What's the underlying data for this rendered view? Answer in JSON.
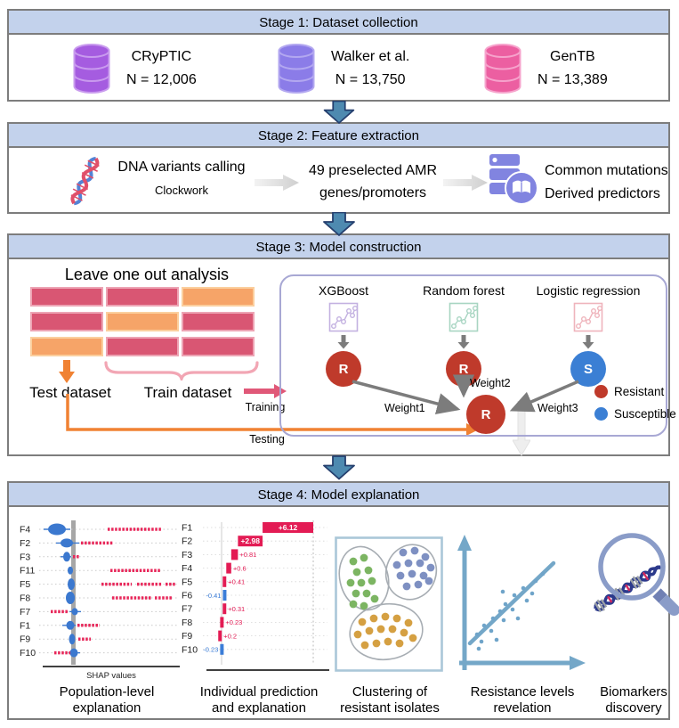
{
  "figure": {
    "stage1": {
      "title": "Stage 1: Dataset collection",
      "datasets": [
        {
          "name": "CRyPTIC",
          "count": "N = 12,006",
          "color": "#a55ce0",
          "band": "#c99bee"
        },
        {
          "name": "Walker et al.",
          "count": "N = 13,750",
          "color": "#8b7ce8",
          "band": "#b3a8f0"
        },
        {
          "name": "GenTB",
          "count": "N = 13,389",
          "color": "#ec5fa1",
          "band": "#f6a3cc"
        }
      ]
    },
    "stage2": {
      "title": "Stage 2: Feature extraction",
      "variant_calling": "DNA variants calling",
      "variant_tool": "Clockwork",
      "genes_line1": "49 preselected AMR",
      "genes_line2": "genes/promoters",
      "outputs_line1": "Common mutations",
      "outputs_line2": "Derived predictors"
    },
    "stage3": {
      "title": "Stage 3: Model construction",
      "loo_title": "Leave one out analysis",
      "bar_rows": [
        [
          "rose",
          "rose",
          "orange"
        ],
        [
          "rose",
          "orange",
          "rose"
        ],
        [
          "orange",
          "rose",
          "rose"
        ]
      ],
      "test_label": "Test dataset",
      "train_label": "Train dataset",
      "training_label": "Training",
      "testing_label": "Testing",
      "models": [
        {
          "name": "XGBoost",
          "accent": "#c3b1e1",
          "node": "R",
          "node_color": "#bf3a2b"
        },
        {
          "name": "Random forest",
          "accent": "#a8d5c2",
          "node": "R",
          "node_color": "#bf3a2b"
        },
        {
          "name": "Logistic regression",
          "accent": "#efb4bc",
          "node": "S",
          "node_color": "#3b7fd4"
        }
      ],
      "weights": [
        "Weight1",
        "Weight2",
        "Weight3"
      ],
      "ensemble_node": {
        "label": "R",
        "color": "#bf3a2b"
      },
      "legend": [
        {
          "label": "Resistant",
          "color": "#bf3a2b"
        },
        {
          "label": "Susceptible",
          "color": "#3b7fd4"
        }
      ]
    },
    "stage4": {
      "title": "Stage 4: Model explanation",
      "beeswarm": {
        "caption_line1": "Population-level",
        "caption_line2": "explanation",
        "xlabel": "SHAP values",
        "red": "#e8275a",
        "blue": "#3b78cf",
        "features": [
          {
            "name": "F4",
            "blue": [
              44,
              10,
              6.5
            ],
            "whisker": [
              29,
              59
            ],
            "red": [
              [
                101,
                162
              ]
            ]
          },
          {
            "name": "F2",
            "blue": [
              55,
              7,
              5
            ],
            "whisker": [
              43,
              69
            ],
            "red": [
              [
                71,
                107
              ]
            ]
          },
          {
            "name": "F3",
            "blue": [
              55,
              4,
              5.5
            ],
            "whisker": [
              48,
              60
            ],
            "red": [
              [
                62,
                70
              ]
            ]
          },
          {
            "name": "F11",
            "blue": [
              59,
              3,
              4.5
            ],
            "whisker": null,
            "red": [
              [
                104,
                160
              ]
            ]
          },
          {
            "name": "F5",
            "blue": [
              60,
              4,
              6.5
            ],
            "whisker": null,
            "red": [
              [
                94,
                128
              ],
              [
                134,
                162
              ],
              [
                166,
                177
              ]
            ]
          },
          {
            "name": "F8",
            "blue": [
              59,
              5,
              7
            ],
            "whisker": null,
            "red": [
              [
                106,
                150
              ],
              [
                154,
                173
              ]
            ]
          },
          {
            "name": "F7",
            "blue": [
              64,
              3.5,
              4
            ],
            "whisker": [
              58,
              71
            ],
            "red": [
              [
                37,
                56
              ]
            ]
          },
          {
            "name": "F1",
            "blue": [
              59,
              4.5,
              5
            ],
            "whisker": [
              50,
              65
            ],
            "red": [
              [
                67,
                92
              ]
            ]
          },
          {
            "name": "F9",
            "blue": [
              61,
              3.5,
              6
            ],
            "whisker": null,
            "red": [
              [
                68,
                82
              ]
            ]
          },
          {
            "name": "F10",
            "blue": [
              63,
              4.5,
              5
            ],
            "whisker": [
              57,
              70
            ],
            "red": [
              [
                41,
                59
              ]
            ]
          }
        ]
      },
      "waterfall": {
        "caption_line1": "Individual prediction",
        "caption_line2": "and explanation",
        "red": "#e31b54",
        "blue": "#3b7dd8",
        "rows": [
          {
            "name": "F1",
            "value": 6.12,
            "label": "+6.12"
          },
          {
            "name": "F2",
            "value": 2.98,
            "label": "+2.98"
          },
          {
            "name": "F3",
            "value": 0.81,
            "label": "+0.81"
          },
          {
            "name": "F4",
            "value": 0.6,
            "label": "+0.6"
          },
          {
            "name": "F5",
            "value": 0.41,
            "label": "+0.41"
          },
          {
            "name": "F6",
            "value": -0.41,
            "label": "-0.41"
          },
          {
            "name": "F7",
            "value": 0.31,
            "label": "+0.31"
          },
          {
            "name": "F8",
            "value": 0.23,
            "label": "+0.23"
          },
          {
            "name": "F9",
            "value": 0.2,
            "label": "+0.2"
          },
          {
            "name": "F10",
            "value": -0.23,
            "label": "-0.23"
          }
        ]
      },
      "clustering": {
        "caption_line1": "Clustering of",
        "caption_line2": "resistant isolates",
        "clusters": [
          {
            "color": "#7cb562",
            "ellipse": [
              33,
              47,
              27,
              36,
              -15
            ],
            "dots": [
              [
                21,
                28
              ],
              [
                33,
                24
              ],
              [
                25,
                40
              ],
              [
                38,
                38
              ],
              [
                18,
                52
              ],
              [
                30,
                52
              ],
              [
                42,
                50
              ],
              [
                24,
                64
              ],
              [
                36,
                64
              ],
              [
                21,
                76
              ],
              [
                33,
                78
              ],
              [
                45,
                70
              ]
            ]
          },
          {
            "color": "#7e90c2",
            "ellipse": [
              86,
              40,
              28,
              31,
              18
            ],
            "dots": [
              [
                77,
                18
              ],
              [
                90,
                16
              ],
              [
                102,
                23
              ],
              [
                70,
                32
              ],
              [
                83,
                30
              ],
              [
                96,
                30
              ],
              [
                108,
                35
              ],
              [
                74,
                44
              ],
              [
                87,
                42
              ],
              [
                100,
                44
              ],
              [
                81,
                56
              ],
              [
                94,
                54
              ],
              [
                106,
                50
              ]
            ]
          },
          {
            "color": "#d5a042",
            "ellipse": [
              58,
              107,
              41,
              31,
              -8
            ],
            "dots": [
              [
                31,
                96
              ],
              [
                44,
                92
              ],
              [
                57,
                90
              ],
              [
                70,
                92
              ],
              [
                83,
                97
              ],
              [
                26,
                110
              ],
              [
                39,
                106
              ],
              [
                52,
                104
              ],
              [
                65,
                104
              ],
              [
                78,
                108
              ],
              [
                34,
                122
              ],
              [
                47,
                120
              ],
              [
                60,
                118
              ],
              [
                73,
                120
              ],
              [
                88,
                114
              ]
            ]
          }
        ]
      },
      "scatter": {
        "caption_line1": "Resistance levels",
        "caption_line2": "revelation",
        "color": "#6fa4c9",
        "line": [
          20,
          128,
          114,
          38
        ],
        "dots": [
          [
            28,
            118
          ],
          [
            36,
            108
          ],
          [
            33,
            126
          ],
          [
            46,
            100
          ],
          [
            44,
            114
          ],
          [
            54,
            92
          ],
          [
            50,
            124
          ],
          [
            60,
            84
          ],
          [
            58,
            102
          ],
          [
            70,
            74
          ],
          [
            68,
            90
          ],
          [
            80,
            66
          ],
          [
            84,
            80
          ],
          [
            94,
            58
          ],
          [
            90,
            72
          ],
          [
            102,
            50
          ],
          [
            30,
            134
          ],
          [
            57,
            70
          ],
          [
            74,
            100
          ]
        ]
      },
      "biomarkers": {
        "caption_line1": "Biomarkers",
        "caption_line2": "discovery"
      }
    }
  },
  "colors": {
    "header_bg": "#c3d2ec",
    "stage_border": "#7d7d7d",
    "flow_arrow": "#4e8ab0",
    "flow_arrow_border": "#253f6e",
    "rose_bar": "#d95673",
    "orange_bar": "#f6a468",
    "orange_arrow": "#f08233",
    "training_arrow": "#e05878",
    "brace_pink": "#f2a6b4",
    "model_box_border": "#a8a8d4",
    "connector_gray": "#7c7c7c"
  },
  "chart_data": [
    {
      "type": "scatter",
      "subtype": "shap-beeswarm",
      "title": "Population-level explanation",
      "xlabel": "SHAP values",
      "categories": [
        "F4",
        "F2",
        "F3",
        "F11",
        "F5",
        "F8",
        "F7",
        "F1",
        "F9",
        "F10"
      ],
      "legend_position": "none",
      "grid": "dotted-horizontal"
    },
    {
      "type": "bar",
      "subtype": "shap-waterfall",
      "title": "Individual prediction and explanation",
      "categories": [
        "F1",
        "F2",
        "F3",
        "F4",
        "F5",
        "F6",
        "F7",
        "F8",
        "F9",
        "F10"
      ],
      "values": [
        6.12,
        2.98,
        0.81,
        0.6,
        0.41,
        -0.41,
        0.31,
        0.23,
        0.2,
        -0.23
      ],
      "positive_color": "#e31b54",
      "negative_color": "#3b7dd8"
    }
  ]
}
